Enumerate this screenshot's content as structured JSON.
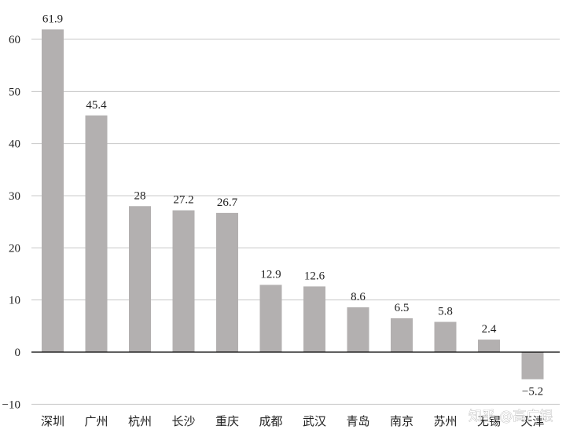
{
  "chart_data": {
    "type": "bar",
    "categories": [
      "深圳",
      "广州",
      "杭州",
      "长沙",
      "重庆",
      "成都",
      "武汉",
      "青岛",
      "南京",
      "苏州",
      "无锡",
      "天津"
    ],
    "values": [
      61.9,
      45.4,
      28,
      27.2,
      26.7,
      12.9,
      12.6,
      8.6,
      6.5,
      5.8,
      2.4,
      -5.2
    ],
    "data_labels": [
      "61.9",
      "45.4",
      "28",
      "27.2",
      "26.7",
      "12.9",
      "12.6",
      "8.6",
      "6.5",
      "5.8",
      "2.4",
      "−5.2"
    ],
    "yticks": [
      60,
      50,
      40,
      30,
      20,
      10,
      0,
      -10
    ],
    "ytick_labels": [
      "60",
      "50",
      "40",
      "30",
      "20",
      "10",
      "0",
      "−10"
    ],
    "ylim": [
      -10,
      65
    ],
    "grid": "horizontal",
    "bar_color": "#b3b0b0",
    "title": "",
    "xlabel": "",
    "ylabel": ""
  },
  "watermark": "知乎 @高广银"
}
